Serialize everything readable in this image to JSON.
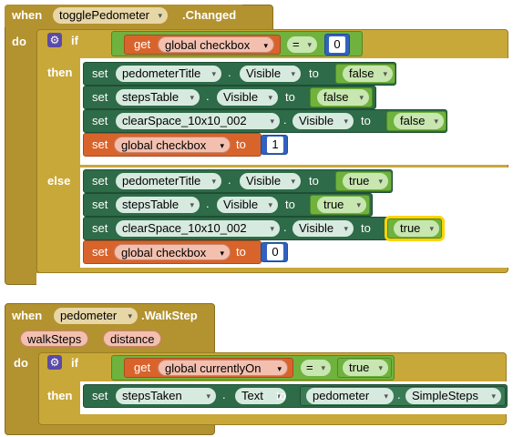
{
  "block1": {
    "when": "when",
    "component": "togglePedometer",
    "event": ".Changed",
    "do": "do",
    "if": "if",
    "then": "then",
    "else": "else",
    "condition": {
      "get": "get",
      "var": "global checkbox",
      "op": "=",
      "value": "0"
    },
    "then_rows": [
      {
        "set": "set",
        "component": "pedometerTitle",
        "dot": ".",
        "prop": "Visible",
        "to": "to",
        "value": "false"
      },
      {
        "set": "set",
        "component": "stepsTable",
        "dot": ".",
        "prop": "Visible",
        "to": "to",
        "value": "false"
      },
      {
        "set": "set",
        "component": "clearSpace_10x10_002",
        "dot": ".",
        "prop": "Visible",
        "to": "to",
        "value": "false"
      },
      {
        "set": "set",
        "var": "global checkbox",
        "to": "to",
        "value": "1"
      }
    ],
    "else_rows": [
      {
        "set": "set",
        "component": "pedometerTitle",
        "dot": ".",
        "prop": "Visible",
        "to": "to",
        "value": "true"
      },
      {
        "set": "set",
        "component": "stepsTable",
        "dot": ".",
        "prop": "Visible",
        "to": "to",
        "value": "true"
      },
      {
        "set": "set",
        "component": "clearSpace_10x10_002",
        "dot": ".",
        "prop": "Visible",
        "to": "to",
        "value": "true"
      },
      {
        "set": "set",
        "var": "global checkbox",
        "to": "to",
        "value": "0"
      }
    ]
  },
  "block2": {
    "when": "when",
    "component": "pedometer",
    "event": ".WalkStep",
    "params": [
      "walkSteps",
      "distance"
    ],
    "do": "do",
    "if": "if",
    "then": "then",
    "condition": {
      "get": "get",
      "var": "global currentlyOn",
      "op": "=",
      "value": "true"
    },
    "set_row": {
      "set": "set",
      "component": "stepsTaken",
      "dot": ".",
      "prop": "Text",
      "to": "to",
      "src_component": "pedometer",
      "src_dot": ".",
      "src_prop": "SimpleSteps"
    }
  },
  "icons": {
    "dropdown": "▾",
    "gear": "⚙"
  },
  "colors": {
    "event": "#b39230",
    "control": "#c9a83a",
    "setter": "#2e6b48",
    "variable": "#d8642c",
    "logic": "#6fb23d",
    "math": "#3262c0",
    "selected": "#ffd400"
  }
}
